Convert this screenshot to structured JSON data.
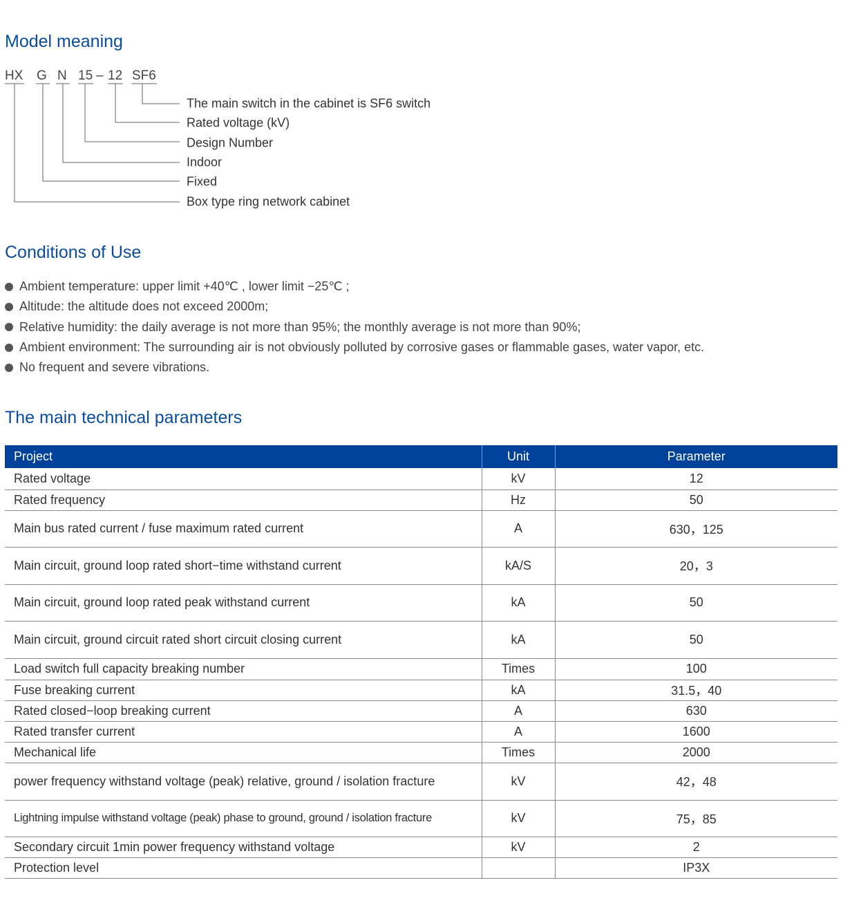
{
  "model_meaning": {
    "title": "Model meaning",
    "codes": [
      "HX",
      "G",
      "N",
      "15",
      "–",
      "12",
      "SF6"
    ],
    "labels": [
      "The main switch in the cabinet is SF6 switch",
      "Rated voltage (kV)",
      "Design Number",
      "Indoor",
      "Fixed",
      "Box type ring network cabinet"
    ]
  },
  "conditions": {
    "title": "Conditions of Use",
    "items": [
      "Ambient temperature: upper limit +40℃ , lower limit −25℃ ;",
      "Altitude: the altitude does not exceed 2000m;",
      "Relative humidity: the daily average is not more than 95%; the monthly average is not more than 90%;",
      "Ambient environment: The surrounding air is not obviously polluted by corrosive gases or flammable gases, water vapor, etc.",
      "No frequent and severe vibrations."
    ]
  },
  "parameters": {
    "title": "The main technical parameters",
    "headers": [
      "Project",
      "Unit",
      "Parameter"
    ],
    "rows": [
      [
        "Rated voltage",
        "kV",
        "12"
      ],
      [
        "Rated frequency",
        "Hz",
        "50"
      ],
      [
        "Main bus rated current / fuse maximum rated current",
        "A",
        "630，125"
      ],
      [
        "Main circuit, ground loop rated short−time withstand current",
        "kA/S",
        "20，3"
      ],
      [
        "Main circuit, ground loop rated peak withstand current",
        "kA",
        "50"
      ],
      [
        "Main circuit, ground circuit rated short circuit closing current",
        "kA",
        "50"
      ],
      [
        "Load switch full capacity breaking number",
        "Times",
        "100"
      ],
      [
        "Fuse breaking current",
        "kA",
        "31.5，40"
      ],
      [
        "Rated closed−loop breaking current",
        "A",
        "630"
      ],
      [
        "Rated transfer current",
        "A",
        "1600"
      ],
      [
        "Mechanical life",
        "Times",
        "2000"
      ],
      [
        "power frequency withstand voltage (peak) relative, ground / isolation fracture",
        "kV",
        "42，48"
      ],
      [
        "Lightning impulse withstand voltage (peak) phase to ground, ground / isolation fracture",
        "kV",
        "75，85"
      ],
      [
        "Secondary circuit 1min power frequency withstand voltage",
        "kV",
        "2"
      ],
      [
        "Protection level",
        "",
        "IP3X"
      ]
    ]
  },
  "colors": {
    "heading": "#0a4d9f",
    "table_header": "#00419a"
  }
}
